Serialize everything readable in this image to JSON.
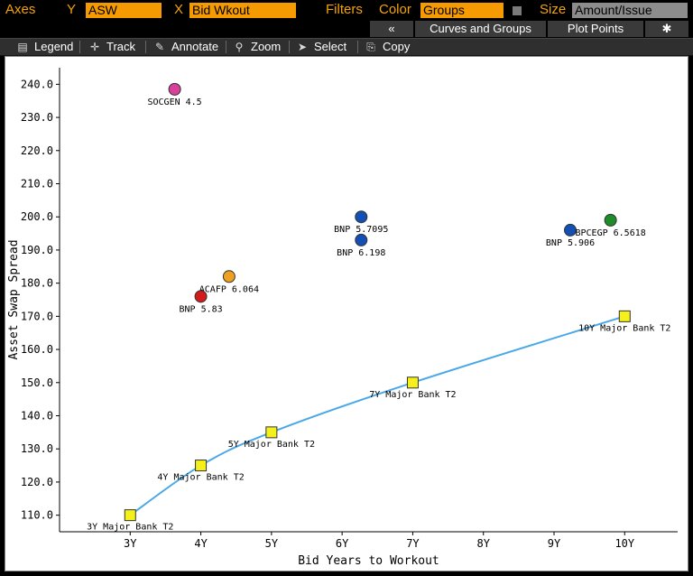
{
  "toolbar": {
    "axes_label": "Axes",
    "y_label": "Y",
    "y_value": "ASW",
    "x_label": "X",
    "x_value": "Bid Wkout",
    "filters_label": "Filters",
    "color_label": "Color",
    "color_value": "Groups",
    "size_label": "Size",
    "size_value": "Amount/Issue"
  },
  "subbar": {
    "collapse_label": "«",
    "curves_label": "Curves and Groups",
    "plot_points_label": "Plot Points",
    "settings_icon": "gear-icon"
  },
  "tools": {
    "legend": "Legend",
    "track": "Track",
    "annotate": "Annotate",
    "zoom": "Zoom",
    "select": "Select",
    "copy": "Copy"
  },
  "chart_data": {
    "type": "scatter",
    "xlabel": "Bid Years to Workout",
    "ylabel": "Asset Swap Spread",
    "x_ticks": [
      "3Y",
      "4Y",
      "5Y",
      "6Y",
      "7Y",
      "8Y",
      "9Y",
      "10Y"
    ],
    "xlim": [
      2.0,
      10.75
    ],
    "ylim": [
      105,
      245
    ],
    "y_ticks": [
      110,
      120,
      130,
      140,
      150,
      160,
      170,
      180,
      190,
      200,
      210,
      220,
      230,
      240
    ],
    "points": [
      {
        "label": "SOCGEN 4.5",
        "x": 3.63,
        "y": 238.5,
        "color": "#d9409b"
      },
      {
        "label": "ACAFP 6.064",
        "x": 4.4,
        "y": 182,
        "color": "#f0a020"
      },
      {
        "label": "BNP 5.83",
        "x": 4.0,
        "y": 176,
        "color": "#d21a1a"
      },
      {
        "label": "BNP 5.7095",
        "x": 6.27,
        "y": 200,
        "color": "#1450b4"
      },
      {
        "label": "BNP 6.198",
        "x": 6.27,
        "y": 193,
        "color": "#1450b4"
      },
      {
        "label": "BNP 5.906",
        "x": 9.23,
        "y": 196,
        "color": "#1450b4"
      },
      {
        "label": "BPCEGP 6.5618",
        "x": 9.8,
        "y": 199,
        "color": "#1e8c28"
      }
    ],
    "curve": {
      "color": "#4aa8e8",
      "marker_color": "#f5f019",
      "points": [
        {
          "label": "3Y Major Bank T2",
          "x": 3,
          "y": 110
        },
        {
          "label": "4Y Major Bank T2",
          "x": 4,
          "y": 125
        },
        {
          "label": "5Y Major Bank T2",
          "x": 5,
          "y": 135
        },
        {
          "label": "7Y Major Bank T2",
          "x": 7,
          "y": 150
        },
        {
          "label": "10Y Major Bank T2",
          "x": 10,
          "y": 170
        }
      ]
    },
    "grid": false,
    "legend": "none"
  }
}
